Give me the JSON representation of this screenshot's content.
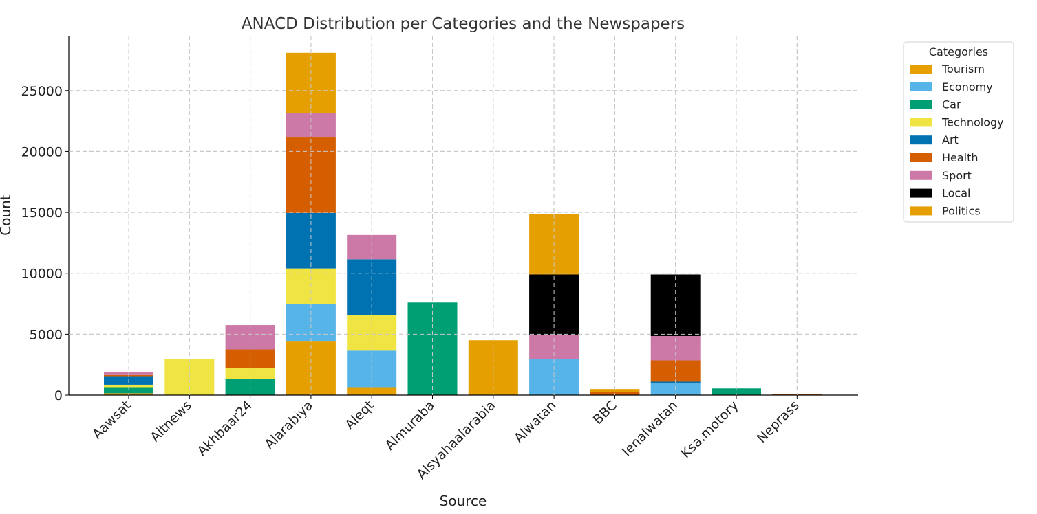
{
  "chart_data": {
    "type": "bar",
    "stacked": true,
    "title": "ANACD Distribution per Categories and the Newspapers",
    "xlabel": "Source",
    "ylabel": "Count",
    "ylim": [
      0,
      29500
    ],
    "yticks": [
      0,
      5000,
      10000,
      15000,
      20000,
      25000
    ],
    "grid": true,
    "legend_title": "Categories",
    "legend_position": "outside-top-right",
    "categories": [
      "Aawsat",
      "Aitnews",
      "Akhbaar24",
      "Alarabiya",
      "Aleqt",
      "Almuraba",
      "Alsyahaalarabia",
      "Alwatan",
      "BBC",
      "Ienalwatan",
      "Ksa.motory",
      "Neprass"
    ],
    "series": [
      {
        "name": "Tourism",
        "color": "#E69F00",
        "values": [
          150,
          0,
          0,
          0,
          0,
          0,
          4500,
          0,
          0,
          0,
          0,
          0
        ]
      },
      {
        "name": "Economy",
        "color": "#56B4E9",
        "values": [
          0,
          0,
          0,
          3000,
          3000,
          0,
          0,
          2950,
          0,
          950,
          0,
          0
        ]
      },
      {
        "name": "Car",
        "color": "#009E73",
        "values": [
          500,
          0,
          1300,
          0,
          0,
          7600,
          0,
          0,
          0,
          0,
          550,
          0
        ]
      },
      {
        "name": "Technology",
        "color": "#F0E442",
        "values": [
          200,
          2950,
          950,
          2950,
          2950,
          0,
          0,
          0,
          0,
          0,
          0,
          0
        ]
      },
      {
        "name": "Art",
        "color": "#0072B2",
        "values": [
          700,
          0,
          0,
          4550,
          4550,
          0,
          0,
          0,
          0,
          150,
          0,
          0
        ]
      },
      {
        "name": "Health",
        "color": "#D55E00",
        "values": [
          150,
          0,
          1500,
          6200,
          0,
          0,
          0,
          0,
          250,
          1750,
          0,
          100
        ]
      },
      {
        "name": "Sport",
        "color": "#CC79A7",
        "values": [
          200,
          0,
          2000,
          2000,
          2000,
          0,
          0,
          2000,
          0,
          2000,
          0,
          0
        ]
      },
      {
        "name": "Local",
        "color": "#000000",
        "values": [
          0,
          0,
          0,
          0,
          0,
          0,
          0,
          4950,
          0,
          5050,
          0,
          0
        ]
      },
      {
        "name": "Politics",
        "color": "#E69F00",
        "values": [
          0,
          0,
          0,
          4950,
          0,
          0,
          0,
          4950,
          250,
          0,
          0,
          0
        ]
      }
    ],
    "base_offsets": [
      0,
      0,
      0,
      4450,
      650,
      0,
      0,
      0,
      0,
      0,
      0,
      0
    ]
  }
}
